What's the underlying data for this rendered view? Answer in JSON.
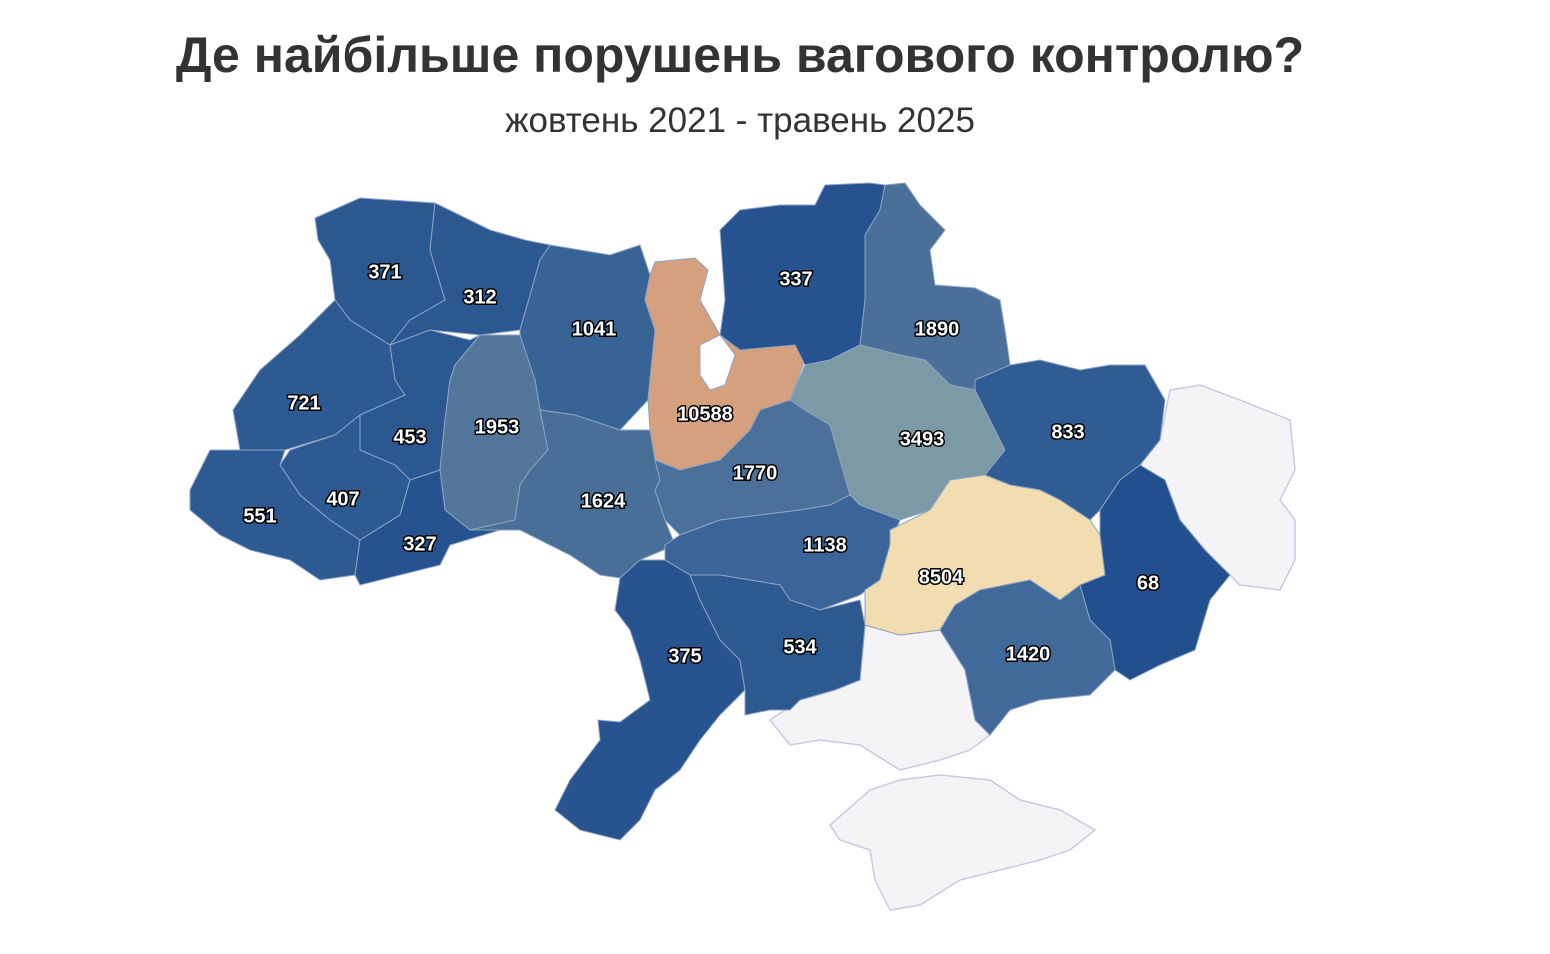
{
  "chart_data": {
    "type": "choropleth",
    "title": "Де найбільше порушень вагового контролю?",
    "subtitle": "жовтень 2021 - травень 2025",
    "values": [
      371,
      312,
      1041,
      10588,
      337,
      1890,
      721,
      453,
      1953,
      407,
      551,
      327,
      1624,
      1770,
      3493,
      833,
      1138,
      8504,
      68,
      1420,
      375,
      534
    ],
    "colors": [
      "#2b5891",
      "#2b5891",
      "#386395",
      "#d4a07e",
      "#26538f",
      "#4a6f98",
      "#2d5a92",
      "#2b5891",
      "#52779a",
      "#2d5a92",
      "#2d5a92",
      "#26538f",
      "#476f98",
      "#4b719a",
      "#7c9aa5",
      "#2f5c94",
      "#3b6498",
      "#f2ddb0",
      "#22508f",
      "#41699a",
      "#27548f",
      "#2d5991"
    ]
  }
}
